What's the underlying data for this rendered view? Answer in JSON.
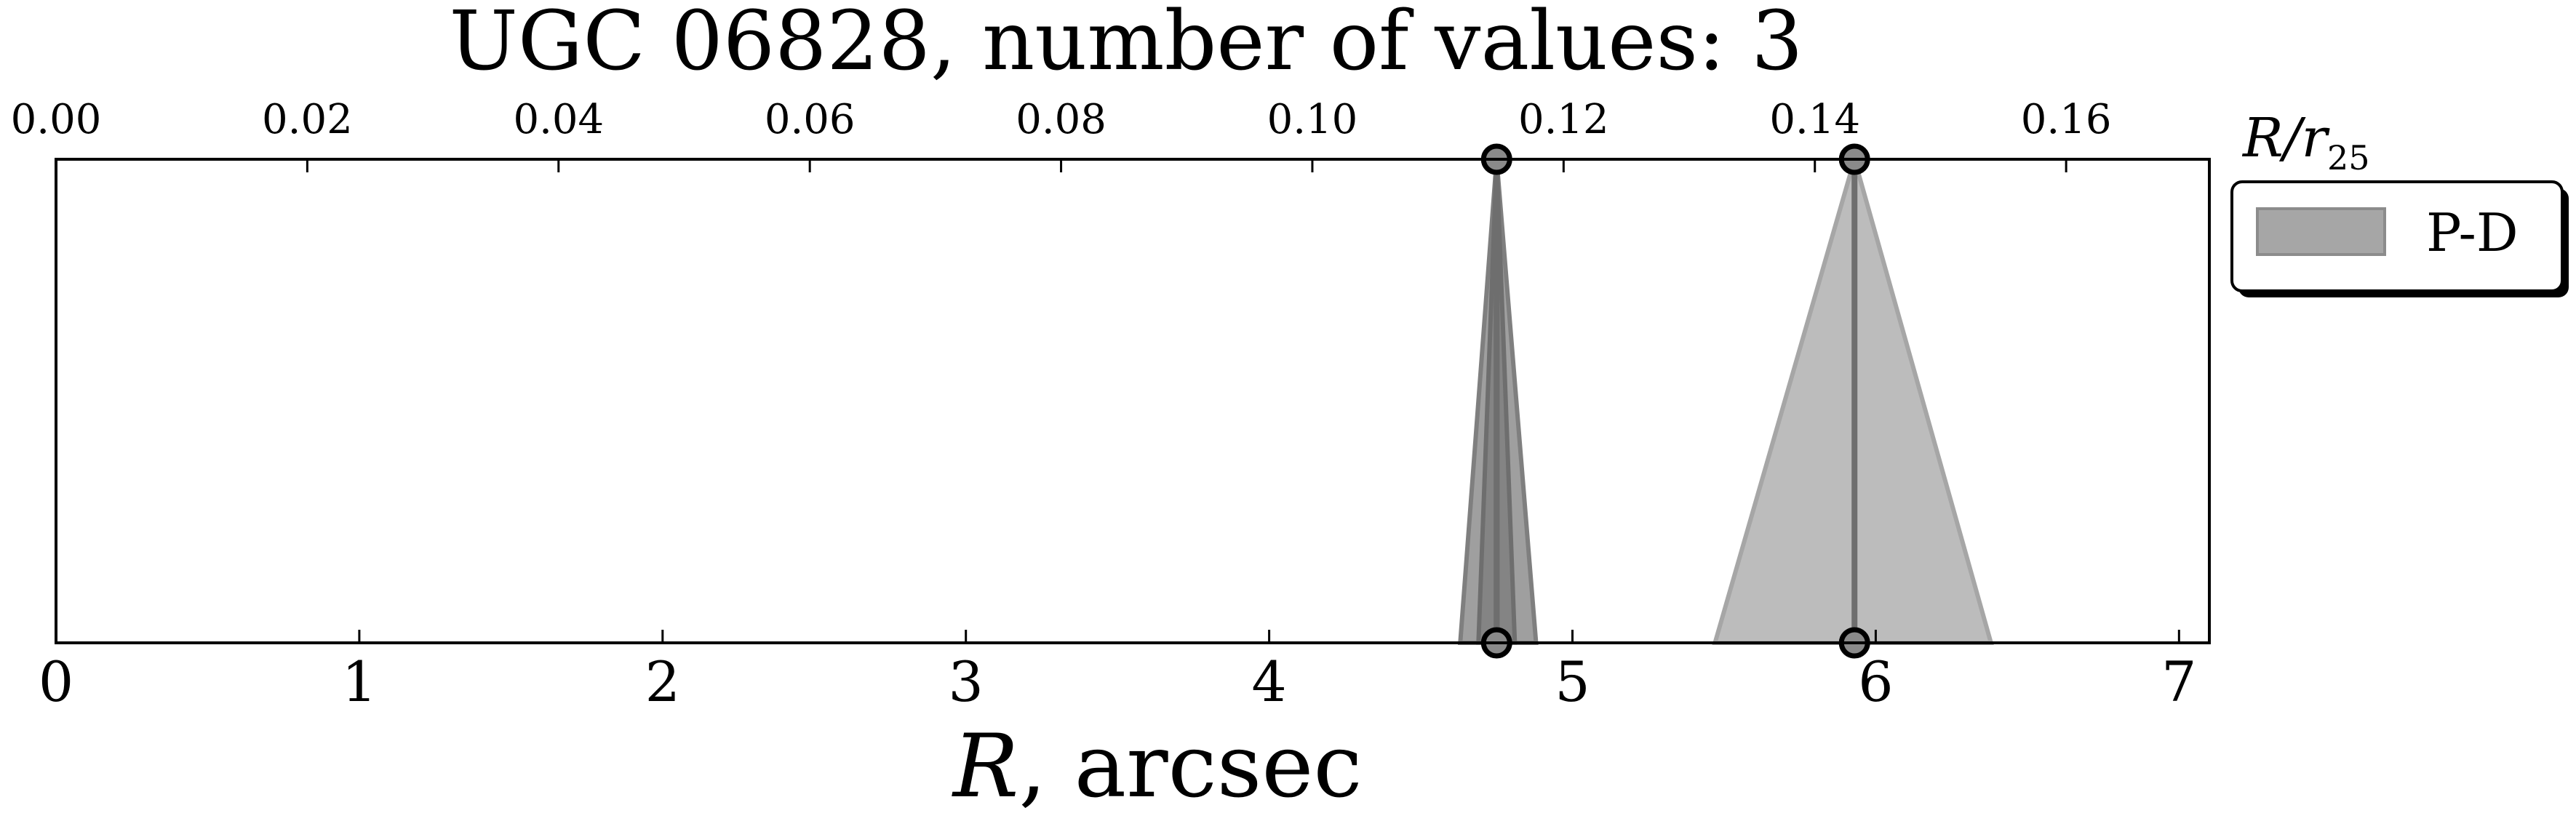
{
  "chart_data": {
    "type": "area",
    "title": "UGC 06828, number of values: 3",
    "xlabel_var": "R",
    "xlabel_rest": ", arcsec",
    "top_axis_label_main": "R/r",
    "top_axis_label_sub": "25",
    "xlim": [
      0,
      7.1
    ],
    "x_ticks": [
      0,
      1,
      2,
      3,
      4,
      5,
      6,
      7
    ],
    "x_tick_labels": [
      "0",
      "1",
      "2",
      "3",
      "4",
      "5",
      "6",
      "7"
    ],
    "top_xlim": [
      0,
      0.1714
    ],
    "top_ticks": [
      0.0,
      0.02,
      0.04,
      0.06,
      0.08,
      0.1,
      0.12,
      0.14,
      0.16
    ],
    "top_tick_labels": [
      "0.00",
      "0.02",
      "0.04",
      "0.06",
      "0.08",
      "0.10",
      "0.12",
      "0.14",
      "0.16"
    ],
    "legend": {
      "label": "P-D",
      "placement": "right, outside plot"
    },
    "series": [
      {
        "name": "P-D",
        "x": 4.75,
        "x_min": 4.63,
        "x_max": 4.88,
        "color": "#7f7f7f",
        "opacity": 0.75
      },
      {
        "name": "P-D",
        "x": 4.75,
        "x_min": 4.69,
        "x_max": 4.81,
        "color": "#6e6e6e",
        "opacity": 0.55
      },
      {
        "name": "P-D",
        "x": 5.93,
        "x_min": 5.47,
        "x_max": 6.38,
        "color": "#a6a6a6",
        "opacity": 0.75
      }
    ]
  }
}
